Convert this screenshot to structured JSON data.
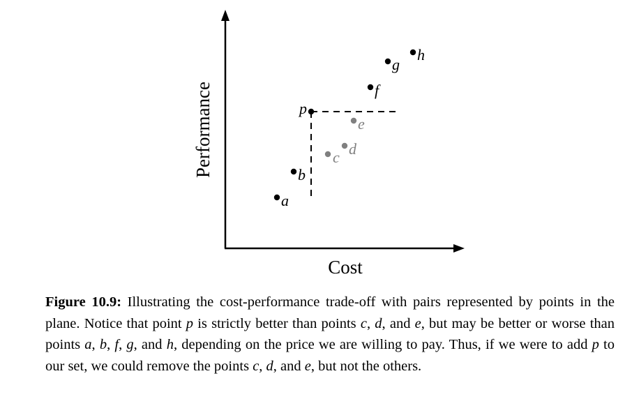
{
  "figure": {
    "x_axis_label": "Cost",
    "y_axis_label": "Performance",
    "points": [
      {
        "label": "a",
        "color": "#000000"
      },
      {
        "label": "b",
        "color": "#000000"
      },
      {
        "label": "c",
        "color": "#808080"
      },
      {
        "label": "d",
        "color": "#808080"
      },
      {
        "label": "e",
        "color": "#808080"
      },
      {
        "label": "f",
        "color": "#000000"
      },
      {
        "label": "g",
        "color": "#000000"
      },
      {
        "label": "h",
        "color": "#000000"
      },
      {
        "label": "p",
        "color": "#000000"
      }
    ]
  },
  "caption": {
    "label": "Figure 10.9:",
    "segments": [
      {
        "text": " Illustrating the cost-performance trade-off with pairs represented by points in the plane. Notice that point ",
        "italic": false
      },
      {
        "text": "p",
        "italic": true
      },
      {
        "text": " is strictly better than points ",
        "italic": false
      },
      {
        "text": "c",
        "italic": true
      },
      {
        "text": ", ",
        "italic": false
      },
      {
        "text": "d",
        "italic": true
      },
      {
        "text": ", and ",
        "italic": false
      },
      {
        "text": "e",
        "italic": true
      },
      {
        "text": ", but may be better or worse than points ",
        "italic": false
      },
      {
        "text": "a",
        "italic": true
      },
      {
        "text": ", ",
        "italic": false
      },
      {
        "text": "b",
        "italic": true
      },
      {
        "text": ", ",
        "italic": false
      },
      {
        "text": "f",
        "italic": true
      },
      {
        "text": ", ",
        "italic": false
      },
      {
        "text": "g",
        "italic": true
      },
      {
        "text": ", and ",
        "italic": false
      },
      {
        "text": "h",
        "italic": true
      },
      {
        "text": ", depending on the price we are willing to pay. Thus, if we were to add ",
        "italic": false
      },
      {
        "text": "p",
        "italic": true
      },
      {
        "text": " to our set, we could remove the points ",
        "italic": false
      },
      {
        "text": "c",
        "italic": true
      },
      {
        "text": ", ",
        "italic": false
      },
      {
        "text": "d",
        "italic": true
      },
      {
        "text": ", and ",
        "italic": false
      },
      {
        "text": "e",
        "italic": true
      },
      {
        "text": ", but not the others.",
        "italic": false
      }
    ]
  }
}
